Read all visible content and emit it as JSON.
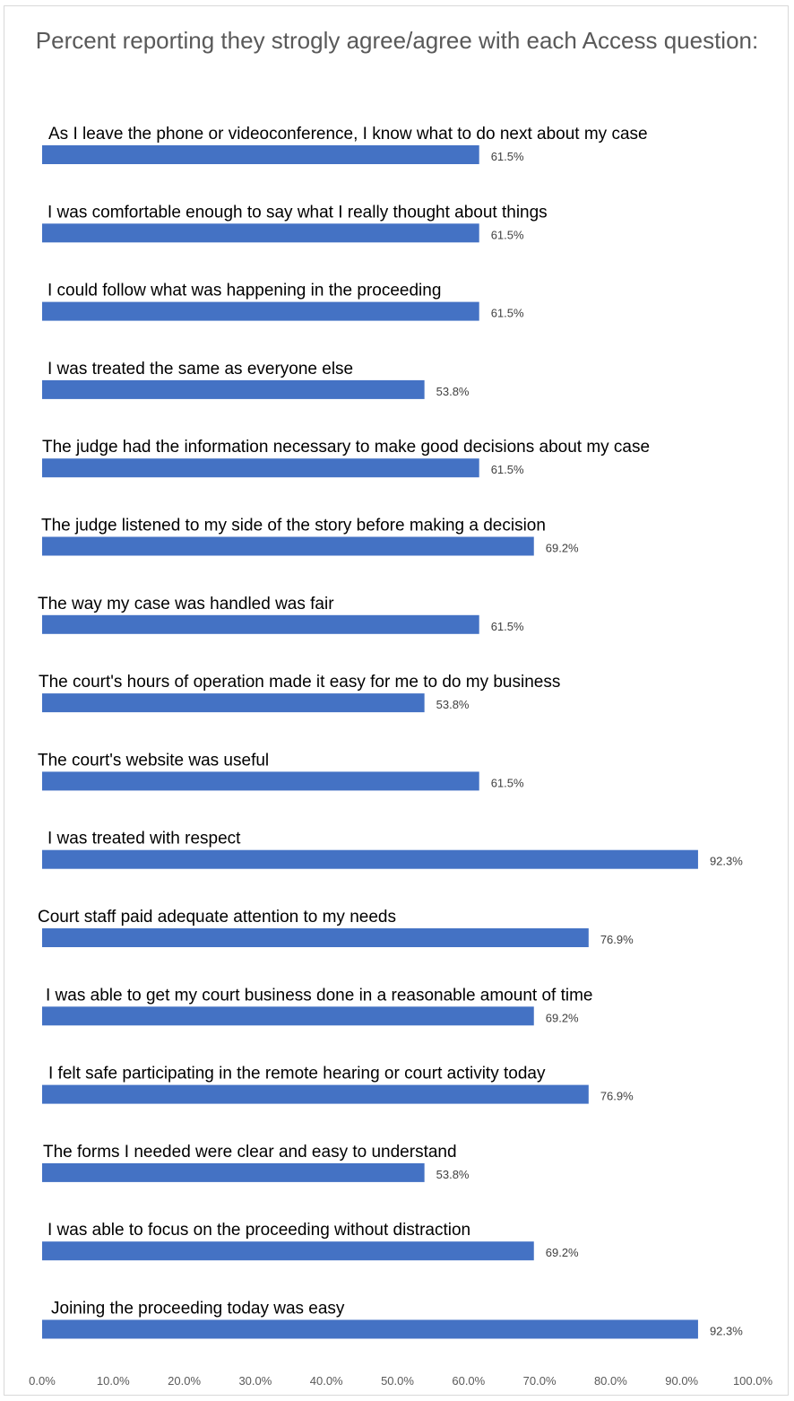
{
  "chart_data": {
    "type": "bar",
    "orientation": "horizontal",
    "title": "Percent reporting they strogly agree/agree with each Access question:",
    "categories": [
      "As I leave the phone or videoconference, I know what to do next about my case",
      "I was comfortable enough to say what I really thought about things",
      "I could follow what was happening in the proceeding",
      "I was treated the same as everyone else",
      "The judge had the information necessary to make good decisions about my case",
      "The judge listened to my side of the story before making a decision",
      "The way my case was handled was fair",
      "The court's hours of operation made it easy for me to do my business",
      "The court's website was useful",
      "I was treated with respect",
      "Court staff paid adequate attention to my needs",
      "I was able to get my court business done in a reasonable amount of time",
      "I felt safe participating in the remote hearing or court activity today",
      "The forms I needed were clear and easy to understand",
      "I was able to focus on the proceeding without distraction",
      "Joining the proceeding today was easy"
    ],
    "values": [
      61.5,
      61.5,
      61.5,
      53.8,
      61.5,
      69.2,
      61.5,
      53.8,
      61.5,
      92.3,
      76.9,
      69.2,
      76.9,
      53.8,
      69.2,
      92.3
    ],
    "value_labels": [
      "61.5%",
      "61.5%",
      "61.5%",
      "53.8%",
      "61.5%",
      "69.2%",
      "61.5%",
      "53.8%",
      "61.5%",
      "92.3%",
      "76.9%",
      "69.2%",
      "76.9%",
      "53.8%",
      "69.2%",
      "92.3%"
    ],
    "xlim": [
      0,
      100
    ],
    "x_ticks": [
      "0.0%",
      "10.0%",
      "20.0%",
      "30.0%",
      "40.0%",
      "50.0%",
      "60.0%",
      "70.0%",
      "80.0%",
      "90.0%",
      "100.0%"
    ],
    "bar_color": "#4472c4",
    "grid": false,
    "legend": "none"
  }
}
